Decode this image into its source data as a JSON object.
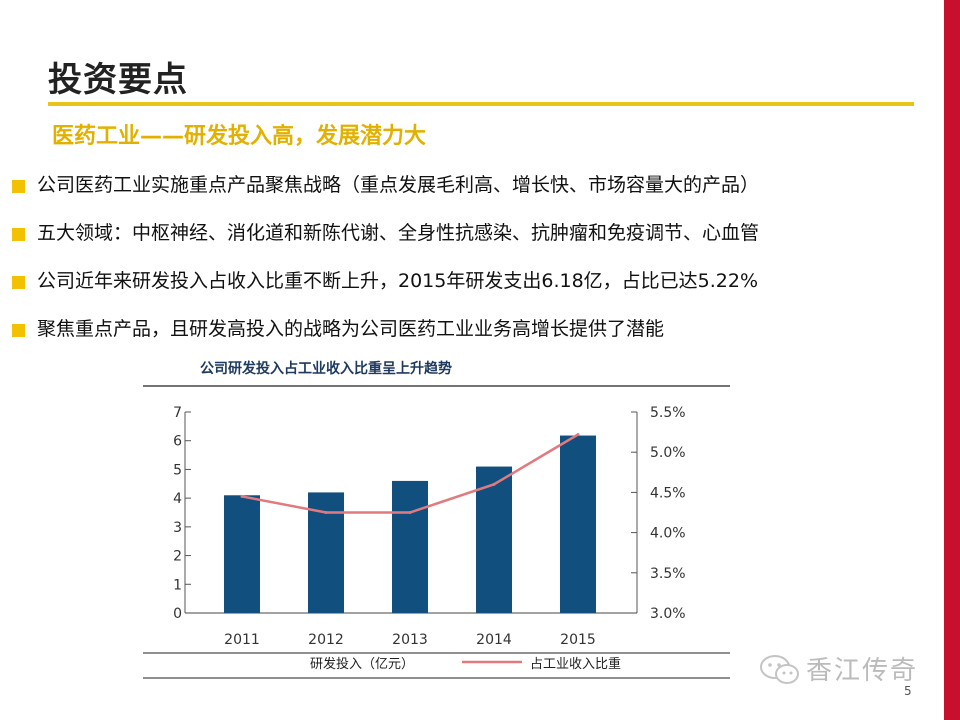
{
  "slide": {
    "title": "投资要点",
    "subtitle": "医药工业——研发投入高，发展潜力大",
    "bullets": [
      "公司医药工业实施重点产品聚焦战略（重点发展毛利高、增长快、市场容量大的产品）",
      "五大领域：中枢神经、消化道和新陈代谢、全身性抗感染、抗肿瘤和免疫调节、心血管",
      "公司近年来研发投入占收入比重不断上升，2015年研发支出6.18亿，占比已达5.22%",
      "聚焦重点产品，且研发高投入的战略为公司医药工业业务高增长提供了潜能"
    ],
    "watermark": "香江传奇",
    "page_number": "5"
  },
  "colors": {
    "bar": "#11507e",
    "line": "#e07a7e",
    "accent": "#f2c200",
    "redbar": "#c8102e"
  },
  "chart_data": {
    "type": "bar",
    "title": "公司研发投入占工业收入比重呈上升趋势",
    "categories": [
      "2011",
      "2012",
      "2013",
      "2014",
      "2015"
    ],
    "series": [
      {
        "name": "研发投入（亿元）",
        "type": "bar",
        "axis": "left",
        "values": [
          4.1,
          4.2,
          4.6,
          5.1,
          6.18
        ]
      },
      {
        "name": "占工业收入比重",
        "type": "line",
        "axis": "right",
        "values": [
          4.45,
          4.25,
          4.25,
          4.6,
          5.22
        ]
      }
    ],
    "y_left": {
      "min": 0,
      "max": 7,
      "ticks": [
        "0",
        "1",
        "2",
        "3",
        "4",
        "5",
        "6",
        "7"
      ]
    },
    "y_right": {
      "min": 3.0,
      "max": 5.5,
      "ticks": [
        "3.0%",
        "3.5%",
        "4.0%",
        "4.5%",
        "5.0%",
        "5.5%"
      ]
    },
    "legend": [
      "研发投入（亿元）",
      "占工业收入比重"
    ],
    "legend_position": "bottom"
  }
}
